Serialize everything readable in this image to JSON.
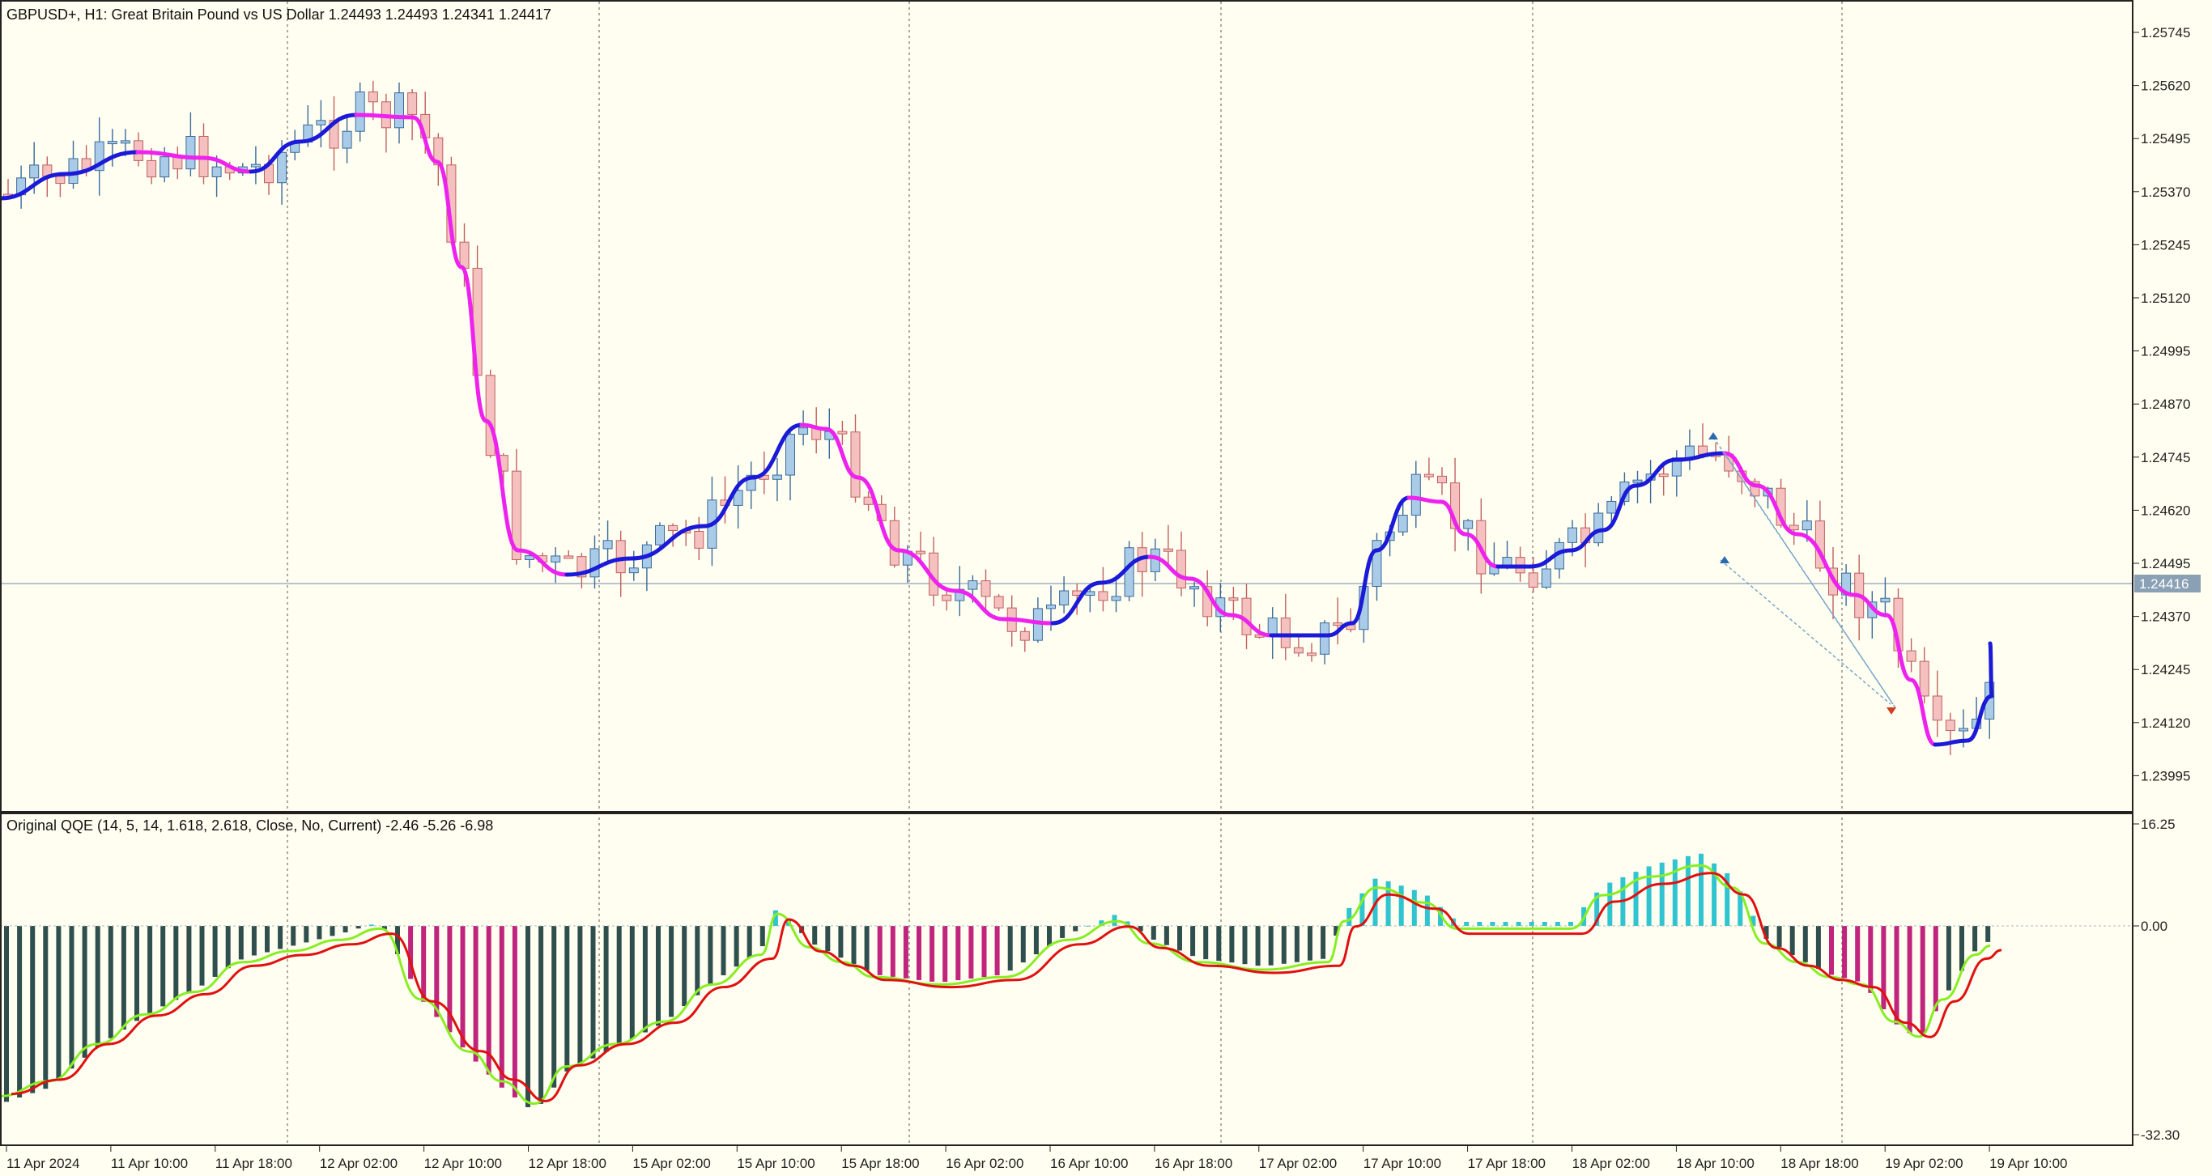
{
  "main_chart": {
    "header": "GBPUSD+, H1:  Great Britain Pound vs US Dollar  1.24493 1.24493 1.24341 1.24417",
    "price_ticks": [
      "1.25745",
      "1.25620",
      "1.25495",
      "1.25370",
      "1.25245",
      "1.25120",
      "1.24995",
      "1.24870",
      "1.24745",
      "1.24620",
      "1.24495",
      "1.24370",
      "1.24245",
      "1.24120",
      "1.23995"
    ],
    "current_price": "1.24416"
  },
  "indicator": {
    "header": "Original QQE (14, 5, 14, 1.618, 2.618, Close, No, Current) -2.46 -5.26 -6.98",
    "ticks": [
      "16.25",
      "0.00",
      "-32.30"
    ]
  },
  "time_labels": [
    "11 Apr 2024",
    "11 Apr 10:00",
    "11 Apr 18:00",
    "12 Apr 02:00",
    "12 Apr 10:00",
    "12 Apr 18:00",
    "15 Apr 02:00",
    "15 Apr 10:00",
    "15 Apr 18:00",
    "16 Apr 02:00",
    "16 Apr 10:00",
    "16 Apr 18:00",
    "17 Apr 02:00",
    "17 Apr 10:00",
    "17 Apr 18:00",
    "18 Apr 02:00",
    "18 Apr 10:00",
    "18 Apr 18:00",
    "19 Apr 02:00",
    "19 Apr 10:00"
  ],
  "colors": {
    "background": "#fffef0",
    "bull_candle": "#a9cbe8",
    "bear_candle": "#f4c0c0",
    "ma_up": "#1a1ad8",
    "ma_down": "#ee22ee",
    "qqe_bar_teal": "#2ec4d0",
    "qqe_bar_magenta": "#c0247c",
    "qqe_bar_dark": "#2f4f4f",
    "qqe_fast": "#88ee22",
    "qqe_slow": "#e01010"
  }
}
